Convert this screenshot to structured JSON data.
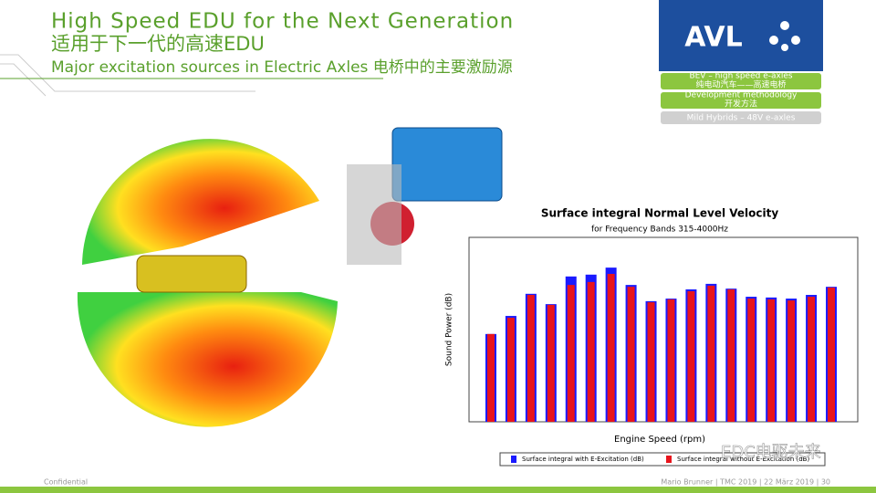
{
  "header": {
    "title": "High Speed EDU for the Next Generation",
    "title_cn": "适用于下一代的高速EDU",
    "subtitle": "Major excitation sources in Electric Axles 电桥中的主要激励源"
  },
  "logo": "AVL",
  "nav": [
    {
      "label": "BEV – high speed e-axles",
      "label_cn": "纯电动汽车——高速电桥"
    },
    {
      "label": "Development methodology",
      "label_cn": "开发方法"
    },
    {
      "label": "Mild Hybrids – 48V e-axles"
    }
  ],
  "chart_data": {
    "type": "bar",
    "title": "Surface integral Normal Level Velocity",
    "subtitle": "for Frequency Bands 315-4000Hz",
    "x_label": "Engine Speed (rpm)",
    "y_label": "Sound Power (dB)",
    "categories": [
      null,
      null,
      null,
      null,
      null,
      null,
      null,
      null,
      null,
      null,
      null,
      null,
      null,
      null,
      null,
      null,
      null,
      null
    ],
    "series": [
      {
        "name": "Surface integral with E-Excitation (dB)",
        "color": "#1a1aff",
        "values": [
          2.38,
          2.87,
          3.47,
          3.19,
          3.94,
          3.99,
          4.18,
          3.71,
          3.27,
          3.34,
          3.59,
          3.74,
          3.61,
          3.39,
          3.37,
          3.34,
          3.44,
          3.66
        ]
      },
      {
        "name": "Surface integral without E-Excitation (dB)",
        "color": "#e8141c",
        "values": [
          2.38,
          2.82,
          3.44,
          3.17,
          3.71,
          3.79,
          4.01,
          3.66,
          3.24,
          3.32,
          3.54,
          3.69,
          3.59,
          3.34,
          3.32,
          3.29,
          3.39,
          3.64
        ]
      }
    ],
    "ylim": [
      0,
      5
    ]
  },
  "footer": {
    "left": "Confidential",
    "right": "Mario Brunner | TMC 2019 | 22 März 2019 | 30",
    "watermark": "EDC电驱未来"
  }
}
